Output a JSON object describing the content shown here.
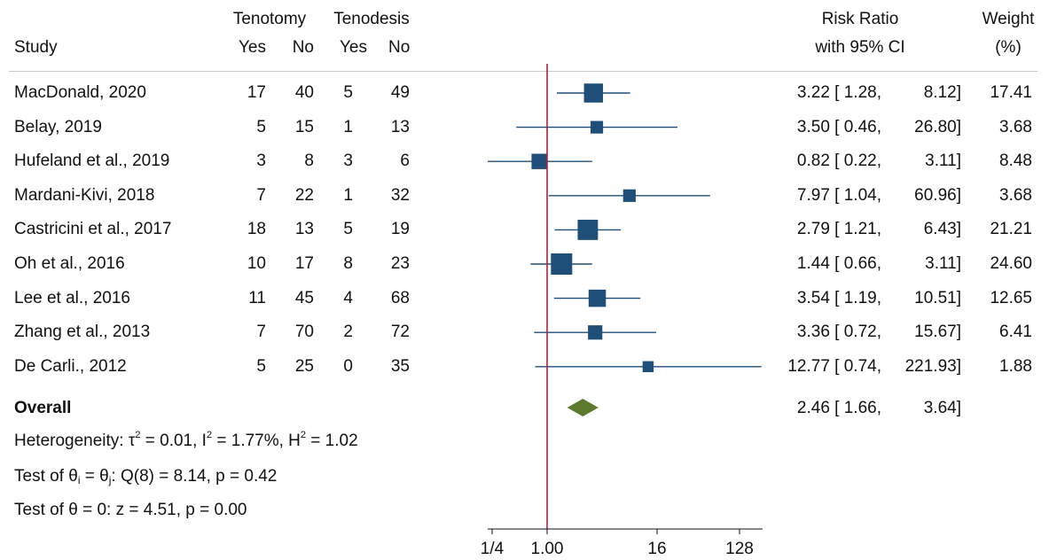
{
  "header": {
    "group1": "Tenotomy",
    "group2": "Tenodesis",
    "study": "Study",
    "yes1": "Yes",
    "no1": "No",
    "yes2": "Yes",
    "no2": "No",
    "rr_line1": "Risk Ratio",
    "rr_line2": "with 95% CI",
    "weight_line1": "Weight",
    "weight_line2": "(%)"
  },
  "overall": {
    "label": "Overall",
    "rr_text": "2.46 [ 1.66,",
    "ci_upper_text": "3.64]"
  },
  "stats": {
    "het_prefix": "Heterogeneity: τ",
    "tau_sup": "2",
    "het_mid1": " = 0.01, I",
    "i_sup": "2",
    "het_mid2": " = 1.77%, H",
    "h_sup": "2",
    "het_end": " = 1.02",
    "test1_a": "Test of θ",
    "test1_sub_i": "i",
    "test1_b": " = θ",
    "test1_sub_j": "j",
    "test1_c": ": Q(8) = 8.14, p = 0.42",
    "test2": "Test of θ = 0: z = 4.51, p = 0.00"
  },
  "colors": {
    "marker": "#1f4e79",
    "diamond": "#5b7a2e",
    "null_line": "#b0213d"
  },
  "chart_data": {
    "type": "forest",
    "scale": "log2",
    "x_ticks": [
      0.25,
      1,
      16,
      128
    ],
    "x_tick_labels": [
      "1/4",
      "1.00",
      "16",
      "128"
    ],
    "null_value": 1,
    "studies": [
      {
        "name": "MacDonald, 2020",
        "ten_yes": "17",
        "ten_no": "40",
        "tes_yes": "5",
        "tes_no": "49",
        "rr": 3.22,
        "lo": 1.28,
        "hi": 8.12,
        "rr_text": "3.22 [ 1.28,",
        "hi_text": "8.12]",
        "weight": "17.41"
      },
      {
        "name": "Belay, 2019",
        "ten_yes": "5",
        "ten_no": "15",
        "tes_yes": "1",
        "tes_no": "13",
        "rr": 3.5,
        "lo": 0.46,
        "hi": 26.8,
        "rr_text": "3.50 [ 0.46,",
        "hi_text": "26.80]",
        "weight": "3.68"
      },
      {
        "name": "Hufeland et al., 2019",
        "ten_yes": "3",
        "ten_no": "8",
        "tes_yes": "3",
        "tes_no": "6",
        "rr": 0.82,
        "lo": 0.22,
        "hi": 3.11,
        "rr_text": "0.82 [ 0.22,",
        "hi_text": "3.11]",
        "weight": "8.48"
      },
      {
        "name": "Mardani-Kivi, 2018",
        "ten_yes": "7",
        "ten_no": "22",
        "tes_yes": "1",
        "tes_no": "32",
        "rr": 7.97,
        "lo": 1.04,
        "hi": 60.96,
        "rr_text": "7.97 [ 1.04,",
        "hi_text": "60.96]",
        "weight": "3.68"
      },
      {
        "name": "Castricini et al., 2017",
        "ten_yes": "18",
        "ten_no": "13",
        "tes_yes": "5",
        "tes_no": "19",
        "rr": 2.79,
        "lo": 1.21,
        "hi": 6.43,
        "rr_text": "2.79 [ 1.21,",
        "hi_text": "6.43]",
        "weight": "21.21"
      },
      {
        "name": "Oh et al., 2016",
        "ten_yes": "10",
        "ten_no": "17",
        "tes_yes": "8",
        "tes_no": "23",
        "rr": 1.44,
        "lo": 0.66,
        "hi": 3.11,
        "rr_text": "1.44 [ 0.66,",
        "hi_text": "3.11]",
        "weight": "24.60"
      },
      {
        "name": "Lee et al., 2016",
        "ten_yes": "11",
        "ten_no": "45",
        "tes_yes": "4",
        "tes_no": "68",
        "rr": 3.54,
        "lo": 1.19,
        "hi": 10.51,
        "rr_text": "3.54 [ 1.19,",
        "hi_text": "10.51]",
        "weight": "12.65"
      },
      {
        "name": "Zhang et al., 2013",
        "ten_yes": "7",
        "ten_no": "70",
        "tes_yes": "2",
        "tes_no": "72",
        "rr": 3.36,
        "lo": 0.72,
        "hi": 15.67,
        "rr_text": "3.36 [ 0.72,",
        "hi_text": "15.67]",
        "weight": "6.41"
      },
      {
        "name": "De Carli., 2012",
        "ten_yes": "5",
        "ten_no": "25",
        "tes_yes": "0",
        "tes_no": "35",
        "rr": 12.77,
        "lo": 0.74,
        "hi": 221.93,
        "rr_text": "12.77 [ 0.74,",
        "hi_text": "221.93]",
        "weight": "1.88"
      }
    ],
    "overall": {
      "rr": 2.46,
      "lo": 1.66,
      "hi": 3.64
    }
  }
}
